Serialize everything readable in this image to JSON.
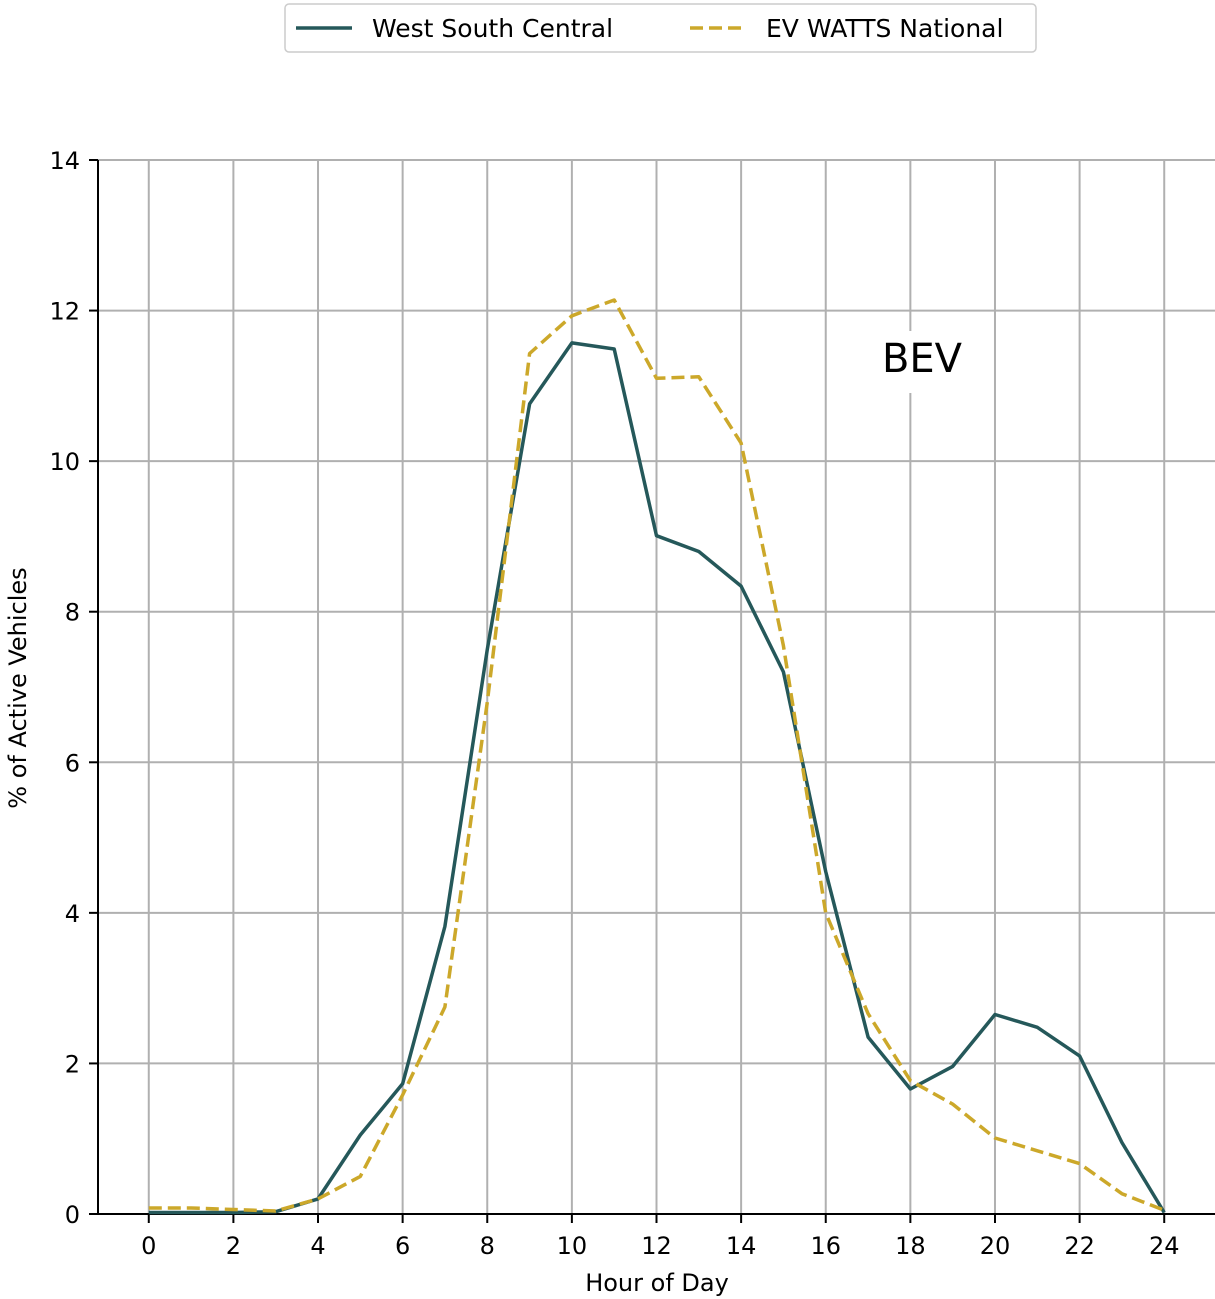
{
  "chart_data": {
    "type": "line",
    "xlabel": "Hour of Day",
    "ylabel": "% of Active Vehicles",
    "annotation": "BEV",
    "xlim": [
      -1.2,
      25.2
    ],
    "ylim": [
      0,
      14
    ],
    "xticks": [
      0,
      2,
      4,
      6,
      8,
      10,
      12,
      14,
      16,
      18,
      20,
      22,
      24
    ],
    "yticks": [
      0,
      2,
      4,
      6,
      8,
      10,
      12,
      14
    ],
    "grid": true,
    "legend": "top-center",
    "x": [
      0,
      1,
      2,
      3,
      4,
      5,
      6,
      7,
      8,
      9,
      10,
      11,
      12,
      13,
      14,
      15,
      16,
      17,
      18,
      19,
      20,
      21,
      22,
      23,
      24
    ],
    "series": [
      {
        "name": "West South Central",
        "color": "#25585a",
        "style": "solid",
        "values": [
          0.02,
          0.02,
          0.02,
          0.03,
          0.2,
          1.05,
          1.73,
          3.82,
          7.5,
          10.76,
          11.57,
          11.49,
          9.01,
          8.8,
          8.34,
          7.2,
          4.55,
          2.35,
          1.66,
          1.96,
          2.65,
          2.48,
          2.1,
          0.95,
          0.02
        ]
      },
      {
        "name": "EV WATTS National",
        "color": "#cca82a",
        "style": "dashed",
        "values": [
          0.08,
          0.08,
          0.06,
          0.04,
          0.2,
          0.5,
          1.58,
          2.75,
          6.8,
          11.43,
          11.93,
          12.14,
          11.1,
          11.12,
          10.24,
          7.55,
          4.0,
          2.66,
          1.77,
          1.46,
          1.01,
          0.84,
          0.67,
          0.27,
          0.05
        ]
      }
    ]
  }
}
